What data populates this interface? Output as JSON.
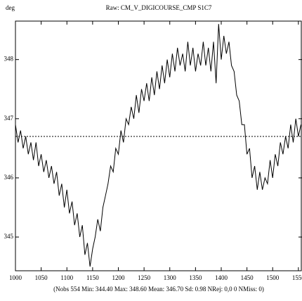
{
  "chart_data": {
    "type": "line",
    "title": "Raw: CM_V_DIGICOURSE_CMP S1C7",
    "y_label": "deg",
    "footer": "(Nobs 554 Min: 344.40 Max: 348.60 Mean: 346.70 Sd: 0.98 NRej: 0,0 0 NMiss: 0)",
    "x": [
      1000,
      1005,
      1010,
      1015,
      1020,
      1025,
      1030,
      1035,
      1040,
      1045,
      1050,
      1055,
      1060,
      1065,
      1070,
      1075,
      1080,
      1085,
      1090,
      1095,
      1100,
      1105,
      1110,
      1115,
      1120,
      1125,
      1130,
      1135,
      1140,
      1145,
      1150,
      1155,
      1160,
      1165,
      1170,
      1175,
      1180,
      1185,
      1190,
      1195,
      1200,
      1205,
      1210,
      1215,
      1220,
      1225,
      1230,
      1235,
      1240,
      1245,
      1250,
      1255,
      1260,
      1265,
      1270,
      1275,
      1280,
      1285,
      1290,
      1295,
      1300,
      1305,
      1310,
      1315,
      1320,
      1325,
      1330,
      1335,
      1340,
      1345,
      1350,
      1355,
      1360,
      1365,
      1370,
      1375,
      1380,
      1385,
      1390,
      1395,
      1400,
      1405,
      1410,
      1415,
      1420,
      1425,
      1430,
      1435,
      1440,
      1445,
      1450,
      1455,
      1460,
      1465,
      1470,
      1475,
      1480,
      1485,
      1490,
      1495,
      1500,
      1505,
      1510,
      1515,
      1520,
      1525,
      1530,
      1535,
      1540,
      1545,
      1550,
      1555
    ],
    "series": [
      {
        "color": "#000000",
        "values": [
          346.9,
          346.6,
          346.8,
          346.5,
          346.7,
          346.4,
          346.6,
          346.3,
          346.6,
          346.2,
          346.4,
          346.1,
          346.3,
          346.0,
          346.2,
          345.9,
          346.1,
          345.7,
          345.9,
          345.5,
          345.8,
          345.4,
          345.6,
          345.2,
          345.4,
          345.0,
          345.2,
          344.7,
          344.9,
          344.5,
          344.8,
          345.0,
          345.3,
          345.1,
          345.5,
          345.7,
          345.9,
          346.2,
          346.1,
          346.5,
          346.4,
          346.8,
          346.6,
          347.0,
          346.9,
          347.2,
          347.0,
          347.4,
          347.1,
          347.5,
          347.3,
          347.6,
          347.3,
          347.7,
          347.4,
          347.8,
          347.5,
          347.9,
          347.6,
          348.0,
          347.7,
          348.1,
          347.8,
          348.2,
          347.9,
          348.1,
          347.8,
          348.3,
          347.9,
          348.2,
          347.8,
          348.1,
          347.9,
          348.3,
          347.9,
          348.2,
          347.8,
          348.3,
          347.6,
          348.6,
          348.0,
          348.4,
          348.1,
          348.3,
          347.9,
          347.8,
          347.4,
          347.3,
          346.9,
          346.9,
          346.4,
          346.5,
          346.0,
          346.2,
          345.8,
          346.1,
          345.8,
          346.0,
          345.9,
          346.3,
          346.0,
          346.4,
          346.2,
          346.6,
          346.4,
          346.7,
          346.5,
          346.9,
          346.6,
          347.0,
          346.7,
          346.9
        ]
      }
    ],
    "mean_line": 346.7,
    "xlim": [
      1000,
      1557
    ],
    "xticks": [
      1000,
      1050,
      1100,
      1150,
      1200,
      1250,
      1300,
      1350,
      1400,
      1450,
      1500,
      1550
    ],
    "ylim": [
      344.43,
      348.65
    ],
    "yticks": [
      345,
      346,
      347,
      348
    ]
  }
}
